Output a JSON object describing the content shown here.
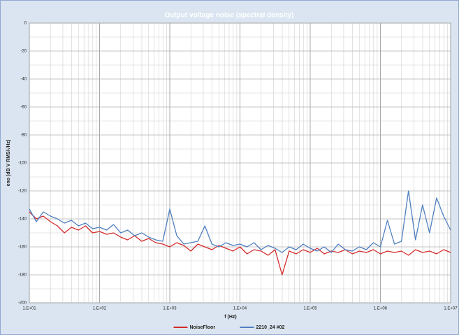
{
  "chart_data": {
    "type": "line",
    "title": "Output voltage noise (spectral density)",
    "x_label": "f (Hz)",
    "y_label": "eno (dB V RMS/√Hz)",
    "xscale": "log",
    "grid": true,
    "minor_grid": true,
    "legend": "bottom",
    "xlim": [
      10,
      10000000
    ],
    "xticks": [
      {
        "value": 10,
        "label": "1.E+01"
      },
      {
        "value": 100,
        "label": "1.E+02"
      },
      {
        "value": 1000,
        "label": "1.E+03"
      },
      {
        "value": 10000,
        "label": "1.E+04"
      },
      {
        "value": 100000,
        "label": "1.E+05"
      },
      {
        "value": 1000000,
        "label": "1.E+06"
      },
      {
        "value": 10000000,
        "label": "1.E+07"
      }
    ],
    "ylim": [
      -200,
      0
    ],
    "yticks": [
      -200,
      -180,
      -160,
      -140,
      -120,
      -100,
      -80,
      -60,
      -40,
      -20,
      0
    ],
    "x": [
      10,
      12.6,
      15.8,
      20,
      25.1,
      31.6,
      39.8,
      50.1,
      63.1,
      79.4,
      100,
      126,
      158,
      200,
      251,
      316,
      398,
      501,
      631,
      794,
      1000,
      1259,
      1585,
      1995,
      2512,
      3162,
      3981,
      5012,
      6310,
      7943,
      10000,
      12589,
      15849,
      19953,
      25119,
      31623,
      39811,
      50119,
      63096,
      79433,
      100000,
      125893,
      158489,
      199526,
      251189,
      316228,
      398107,
      501187,
      630957,
      794328,
      1000000,
      1258925,
      1584893,
      1995262,
      2511886,
      3162278,
      3981072,
      5011872,
      6309573,
      7943282,
      10000000
    ],
    "series": [
      {
        "name": "NoiseFloor",
        "color": "#d42a2a",
        "values": [
          -135,
          -140,
          -138,
          -142,
          -145,
          -150,
          -146,
          -148,
          -145,
          -150,
          -149,
          -151,
          -150,
          -153,
          -155,
          -152,
          -156,
          -154,
          -157,
          -158,
          -160,
          -157,
          -159,
          -163,
          -158,
          -160,
          -162,
          -159,
          -161,
          -163,
          -160,
          -165,
          -162,
          -163,
          -166,
          -162,
          -180,
          -163,
          -165,
          -162,
          -164,
          -161,
          -165,
          -163,
          -164,
          -162,
          -165,
          -163,
          -164,
          -162,
          -165,
          -163,
          -164,
          -163,
          -166,
          -162,
          -164,
          -163,
          -165,
          -162,
          -164
        ]
      },
      {
        "name": "2210_24 #02",
        "color": "#4f7fc0",
        "values": [
          -133,
          -142,
          -135,
          -138,
          -140,
          -143,
          -141,
          -145,
          -143,
          -147,
          -146,
          -148,
          -144,
          -150,
          -148,
          -152,
          -150,
          -153,
          -155,
          -156,
          -133,
          -152,
          -158,
          -157,
          -156,
          -145,
          -158,
          -160,
          -157,
          -159,
          -158,
          -160,
          -157,
          -162,
          -159,
          -161,
          -164,
          -160,
          -162,
          -158,
          -161,
          -163,
          -160,
          -164,
          -158,
          -162,
          -163,
          -160,
          -162,
          -157,
          -160,
          -141,
          -158,
          -156,
          -120,
          -155,
          -130,
          -150,
          -125,
          -138,
          -148
        ]
      }
    ]
  }
}
